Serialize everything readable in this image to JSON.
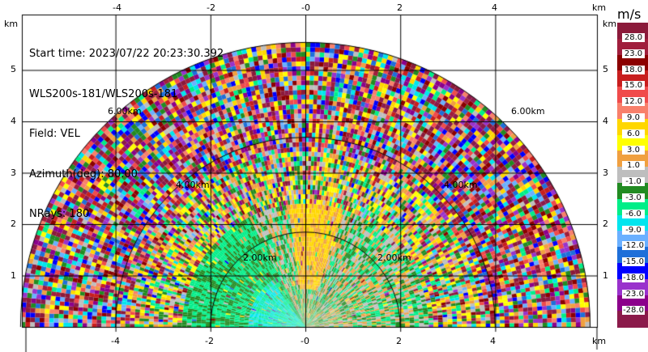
{
  "info": {
    "start_time": "Start time: 2023/07/22 20:23:30.392",
    "instrument": "WLS200s-181/WLS200s-181",
    "field": "Field: VEL",
    "azimuth": "Azimuth(deg): 80.00",
    "nrays": "NRays: 180"
  },
  "axes": {
    "x_ticks": [
      "-4",
      "-2",
      "-0",
      "2",
      "4"
    ],
    "y_ticks": [
      "1",
      "2",
      "3",
      "4",
      "5"
    ],
    "unit": "km",
    "range_rings": [
      "2.00km",
      "4.00km",
      "6.00km"
    ]
  },
  "colorbar": {
    "unit": "m/s",
    "labels": [
      "28.0",
      "23.0",
      "18.0",
      "15.0",
      "12.0",
      "9.0",
      "6.0",
      "3.0",
      "1.0",
      "-1.0",
      "-3.0",
      "-6.0",
      "-9.0",
      "-12.0",
      "-15.0",
      "-18.0",
      "-23.0",
      "-28.0"
    ],
    "colors": [
      "#8b1a3a",
      "#a01e3c",
      "#8b0000",
      "#c81e1e",
      "#f04b4b",
      "#f8806b",
      "#ffd700",
      "#ffff00",
      "#f0a040",
      "#bebebe",
      "#228b22",
      "#00ee88",
      "#00e5ee",
      "#6ab0ff",
      "#1e6fd9",
      "#0000ff",
      "#9932cc",
      "#8b008b",
      "#8b1a4a"
    ]
  },
  "chart_data": {
    "type": "heatmap",
    "title": "",
    "field": "VEL",
    "x_range_km": [
      -6,
      6
    ],
    "y_range_km": [
      0,
      5.8
    ],
    "range_rings_km": [
      2,
      4,
      6
    ]
  }
}
